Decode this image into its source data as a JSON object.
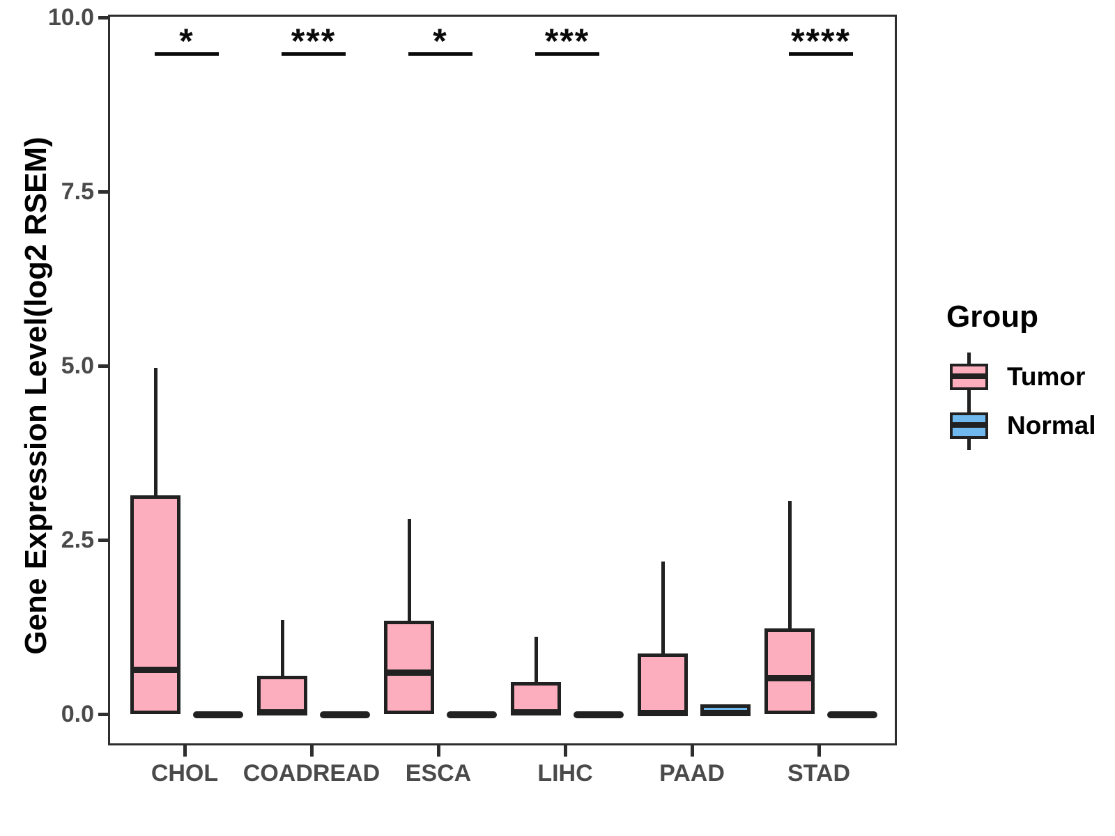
{
  "chart_data": {
    "type": "boxplot",
    "title": "",
    "ylabel": "Gene Expression Level(log2 RSEM)",
    "xlabel": "",
    "ylim": [
      0,
      10
    ],
    "grid": false,
    "yticks": [
      {
        "value": 0.0,
        "label": "0.0"
      },
      {
        "value": 2.5,
        "label": "2.5"
      },
      {
        "value": 5.0,
        "label": "5.0"
      },
      {
        "value": 7.5,
        "label": "7.5"
      },
      {
        "value": 10.0,
        "label": "10.0"
      }
    ],
    "categories": [
      "CHOL",
      "COADREAD",
      "ESCA",
      "LIHC",
      "PAAD",
      "STAD"
    ],
    "significance": [
      "*",
      "***",
      "*",
      "***",
      null,
      "****"
    ],
    "legend": {
      "title": "Group",
      "position": "right",
      "entries": [
        {
          "label": "Tumor",
          "color": "#FDAEBE"
        },
        {
          "label": "Normal",
          "color": "#6FB9EE"
        }
      ]
    },
    "series": [
      {
        "name": "Tumor",
        "color": "#FDAEBE",
        "boxes": [
          {
            "category": "CHOL",
            "flat": false,
            "q1": 0.03,
            "median": 0.67,
            "q3": 3.17,
            "whisker_low": 0.03,
            "whisker_high": 5.0
          },
          {
            "category": "COADREAD",
            "flat": false,
            "q1": 0.03,
            "median": 0.06,
            "q3": 0.58,
            "whisker_low": 0.03,
            "whisker_high": 1.38
          },
          {
            "category": "ESCA",
            "flat": false,
            "q1": 0.03,
            "median": 0.63,
            "q3": 1.37,
            "whisker_low": 0.03,
            "whisker_high": 2.83
          },
          {
            "category": "LIHC",
            "flat": false,
            "q1": 0.03,
            "median": 0.06,
            "q3": 0.49,
            "whisker_low": 0.03,
            "whisker_high": 1.14
          },
          {
            "category": "PAAD",
            "flat": false,
            "q1": 0.02,
            "median": 0.05,
            "q3": 0.9,
            "whisker_low": 0.02,
            "whisker_high": 2.22
          },
          {
            "category": "STAD",
            "flat": false,
            "q1": 0.03,
            "median": 0.55,
            "q3": 1.26,
            "whisker_low": 0.03,
            "whisker_high": 3.09
          }
        ]
      },
      {
        "name": "Normal",
        "color": "#6FB9EE",
        "boxes": [
          {
            "category": "CHOL",
            "flat": true,
            "q1": 0.0,
            "median": 0.02,
            "q3": 0.04,
            "whisker_low": 0.0,
            "whisker_high": 0.04
          },
          {
            "category": "COADREAD",
            "flat": true,
            "q1": 0.0,
            "median": 0.02,
            "q3": 0.04,
            "whisker_low": 0.0,
            "whisker_high": 0.04
          },
          {
            "category": "ESCA",
            "flat": true,
            "q1": 0.0,
            "median": 0.02,
            "q3": 0.04,
            "whisker_low": 0.0,
            "whisker_high": 0.04
          },
          {
            "category": "LIHC",
            "flat": true,
            "q1": 0.0,
            "median": 0.02,
            "q3": 0.04,
            "whisker_low": 0.0,
            "whisker_high": 0.04
          },
          {
            "category": "PAAD",
            "flat": false,
            "q1": 0.02,
            "median": 0.05,
            "q3": 0.17,
            "whisker_low": 0.02,
            "whisker_high": 0.17
          },
          {
            "category": "STAD",
            "flat": true,
            "q1": 0.0,
            "median": 0.02,
            "q3": 0.04,
            "whisker_low": 0.0,
            "whisker_high": 0.04
          }
        ]
      }
    ],
    "colors": {
      "tumor_fill": "#FDAEBE",
      "normal_fill": "#6FB9EE",
      "box_line": "#212121",
      "axis_text": "#4a4a4a",
      "panel_border": "#2e2e2e",
      "significance": "#0a0a0a"
    }
  }
}
